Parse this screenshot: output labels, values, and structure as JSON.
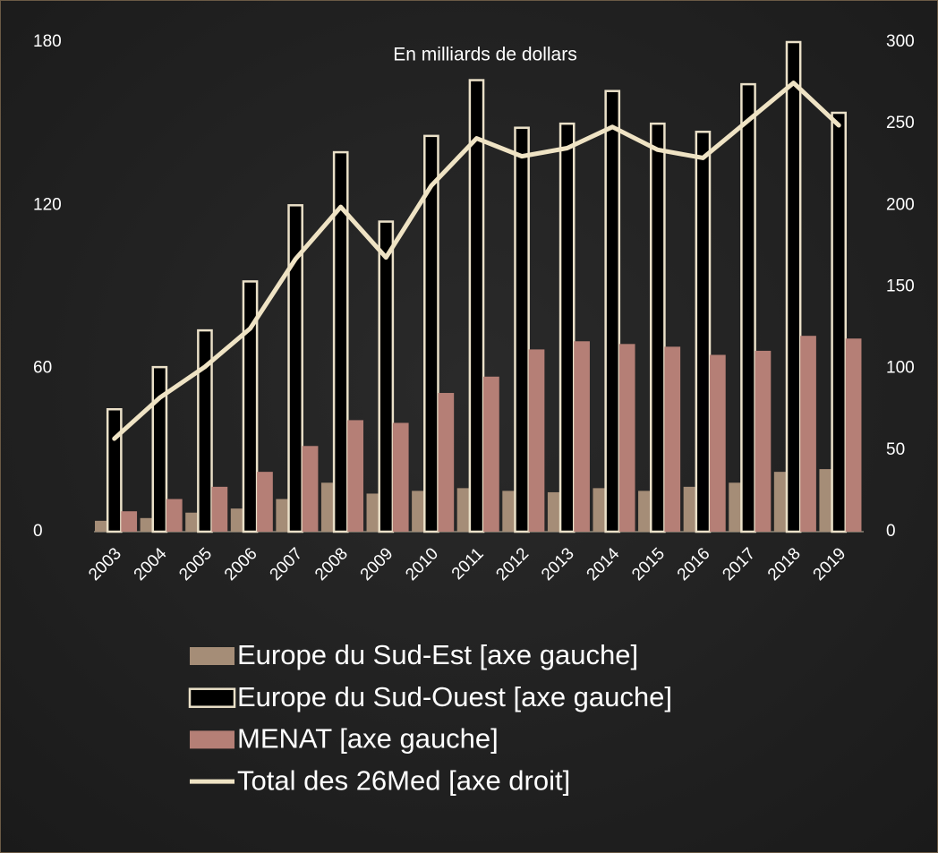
{
  "chart_data": {
    "type": "bar",
    "title": "En milliards de dollars",
    "categories": [
      "2003",
      "2004",
      "2005",
      "2006",
      "2007",
      "2008",
      "2009",
      "2010",
      "2011",
      "2012",
      "2013",
      "2014",
      "2015",
      "2016",
      "2017",
      "2018",
      "2019"
    ],
    "series": [
      {
        "name": "Europe du Sud-Est [axe gauche]",
        "type": "bar",
        "color": "#a58d77",
        "values": [
          4,
          5,
          7,
          8.5,
          12,
          18,
          14,
          15,
          16,
          15,
          14.5,
          16,
          15,
          16.5,
          18,
          22,
          23
        ]
      },
      {
        "name": "Europe du Sud-Ouest [axe gauche]",
        "type": "bar",
        "color": "#000000",
        "stroke": "#eae0c8",
        "values": [
          45,
          60.5,
          74,
          92,
          120,
          139.5,
          114,
          145.5,
          166,
          148.5,
          150,
          162,
          150,
          147,
          164.5,
          180,
          154
        ]
      },
      {
        "name": "MENAT [axe gauche]",
        "type": "bar",
        "color": "#b57f76",
        "values": [
          7.5,
          12,
          16.5,
          22,
          31.5,
          41,
          40,
          51,
          57,
          67,
          70,
          69,
          68,
          65,
          66.5,
          72,
          71
        ]
      },
      {
        "name": "Total des 26Med [axe droit]",
        "type": "line",
        "axis": "y2",
        "color": "#efe3c4",
        "values": [
          57,
          82,
          101,
          124.5,
          167,
          199,
          168,
          212,
          241,
          230,
          235,
          248,
          234,
          229,
          252,
          275,
          249
        ]
      }
    ],
    "ylim": [
      0,
      180
    ],
    "yticks": [
      0,
      60,
      120,
      180
    ],
    "y2lim": [
      0,
      300
    ],
    "y2ticks": [
      0,
      50,
      100,
      150,
      200,
      250,
      300
    ]
  }
}
